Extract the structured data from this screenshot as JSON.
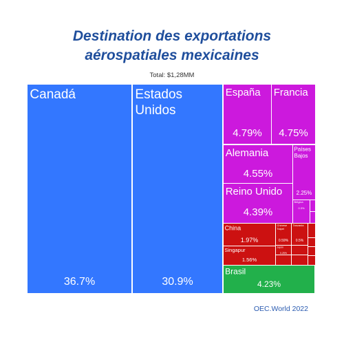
{
  "chart_data": {
    "type": "treemap",
    "title_line1": "Destination des exportations",
    "title_line2": "aérospatiales mexicaines",
    "subtitle": "Total: $1,28MM",
    "source": "OEC.World 2022",
    "colors": {
      "blue": "#3377ff",
      "purple": "#cc19dd",
      "red": "#cc1111",
      "green": "#22b04b"
    },
    "items": [
      {
        "name": "Canadá",
        "value": 36.7,
        "value_label": "36.7%",
        "color": "blue"
      },
      {
        "name": "Estados Unidos",
        "name_lines": [
          "Estados",
          "Unidos"
        ],
        "value": 30.9,
        "value_label": "30.9%",
        "color": "blue"
      },
      {
        "name": "España",
        "value": 4.79,
        "value_label": "4.79%",
        "color": "purple"
      },
      {
        "name": "Francia",
        "value": 4.75,
        "value_label": "4.75%",
        "color": "purple"
      },
      {
        "name": "Alemania",
        "value": 4.55,
        "value_label": "4.55%",
        "color": "purple"
      },
      {
        "name": "Países Bajos",
        "name_lines": [
          "Países",
          "Bajos"
        ],
        "value": 2.25,
        "value_label": "2.25%",
        "color": "purple"
      },
      {
        "name": "Reino Unido",
        "value": 4.39,
        "value_label": "4.39%",
        "color": "purple"
      },
      {
        "name": "Bélgica",
        "value": 0.3,
        "value_label": "0.3%",
        "color": "purple"
      },
      {
        "name": "China",
        "value": 1.97,
        "value_label": "1.97%",
        "color": "red"
      },
      {
        "name": "Singapur",
        "value": 1.56,
        "value_label": "1.56%",
        "color": "red"
      },
      {
        "name": "Chinese Taipei",
        "name_lines": [
          "Chinese",
          "Taipei"
        ],
        "value": 0.59,
        "value_label": "0.59%",
        "color": "red"
      },
      {
        "name": "Tanzania",
        "value": 0.5,
        "value_label": "0.5%",
        "color": "red"
      },
      {
        "name": "Japón",
        "value": 0.25,
        "value_label": "0.25%",
        "color": "red"
      },
      {
        "name": "Brasil",
        "value": 4.23,
        "value_label": "4.23%",
        "color": "green"
      }
    ]
  }
}
